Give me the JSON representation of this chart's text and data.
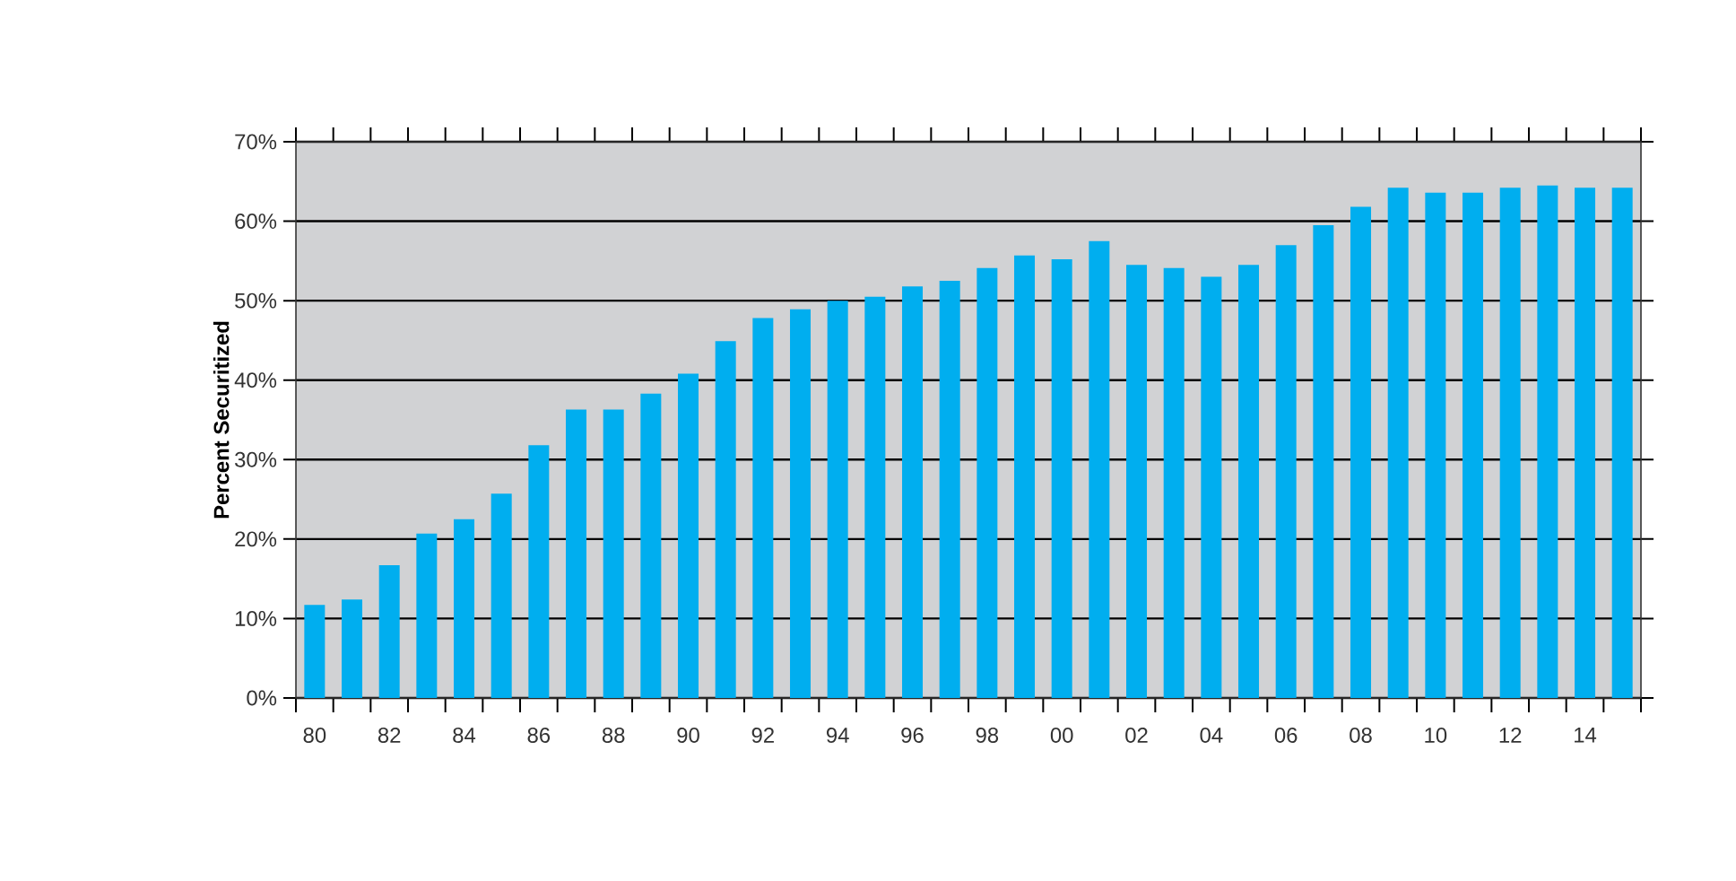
{
  "chart_data": {
    "type": "bar",
    "ylabel": "Percent Securitized",
    "categories": [
      "80",
      null,
      "82",
      null,
      "84",
      null,
      "86",
      null,
      "88",
      null,
      "90",
      null,
      "92",
      null,
      "94",
      null,
      "96",
      null,
      "98",
      null,
      "00",
      null,
      "02",
      null,
      "04",
      null,
      "06",
      null,
      "08",
      null,
      "10",
      null,
      "12",
      null,
      "14",
      null
    ],
    "values": [
      11.7,
      12.4,
      16.7,
      20.7,
      22.5,
      25.7,
      31.8,
      36.3,
      36.3,
      38.3,
      40.8,
      44.9,
      47.8,
      48.9,
      50.0,
      50.5,
      51.8,
      52.5,
      54.1,
      55.7,
      55.2,
      57.5,
      54.5,
      54.1,
      53.0,
      54.5,
      57.0,
      59.5,
      61.8,
      64.2,
      63.6,
      63.6,
      64.2,
      64.5,
      64.2,
      64.2
    ],
    "color": "#00aeef",
    "ylim": [
      0,
      70
    ],
    "yticks": [
      {
        "value": 0,
        "label": "0%"
      },
      {
        "value": 10,
        "label": "10%"
      },
      {
        "value": 20,
        "label": "20%"
      },
      {
        "value": 30,
        "label": "30%"
      },
      {
        "value": 40,
        "label": "40%"
      },
      {
        "value": 50,
        "label": "50%"
      },
      {
        "value": 60,
        "label": "60%"
      },
      {
        "value": 70,
        "label": "70%"
      }
    ],
    "grid": "y"
  }
}
